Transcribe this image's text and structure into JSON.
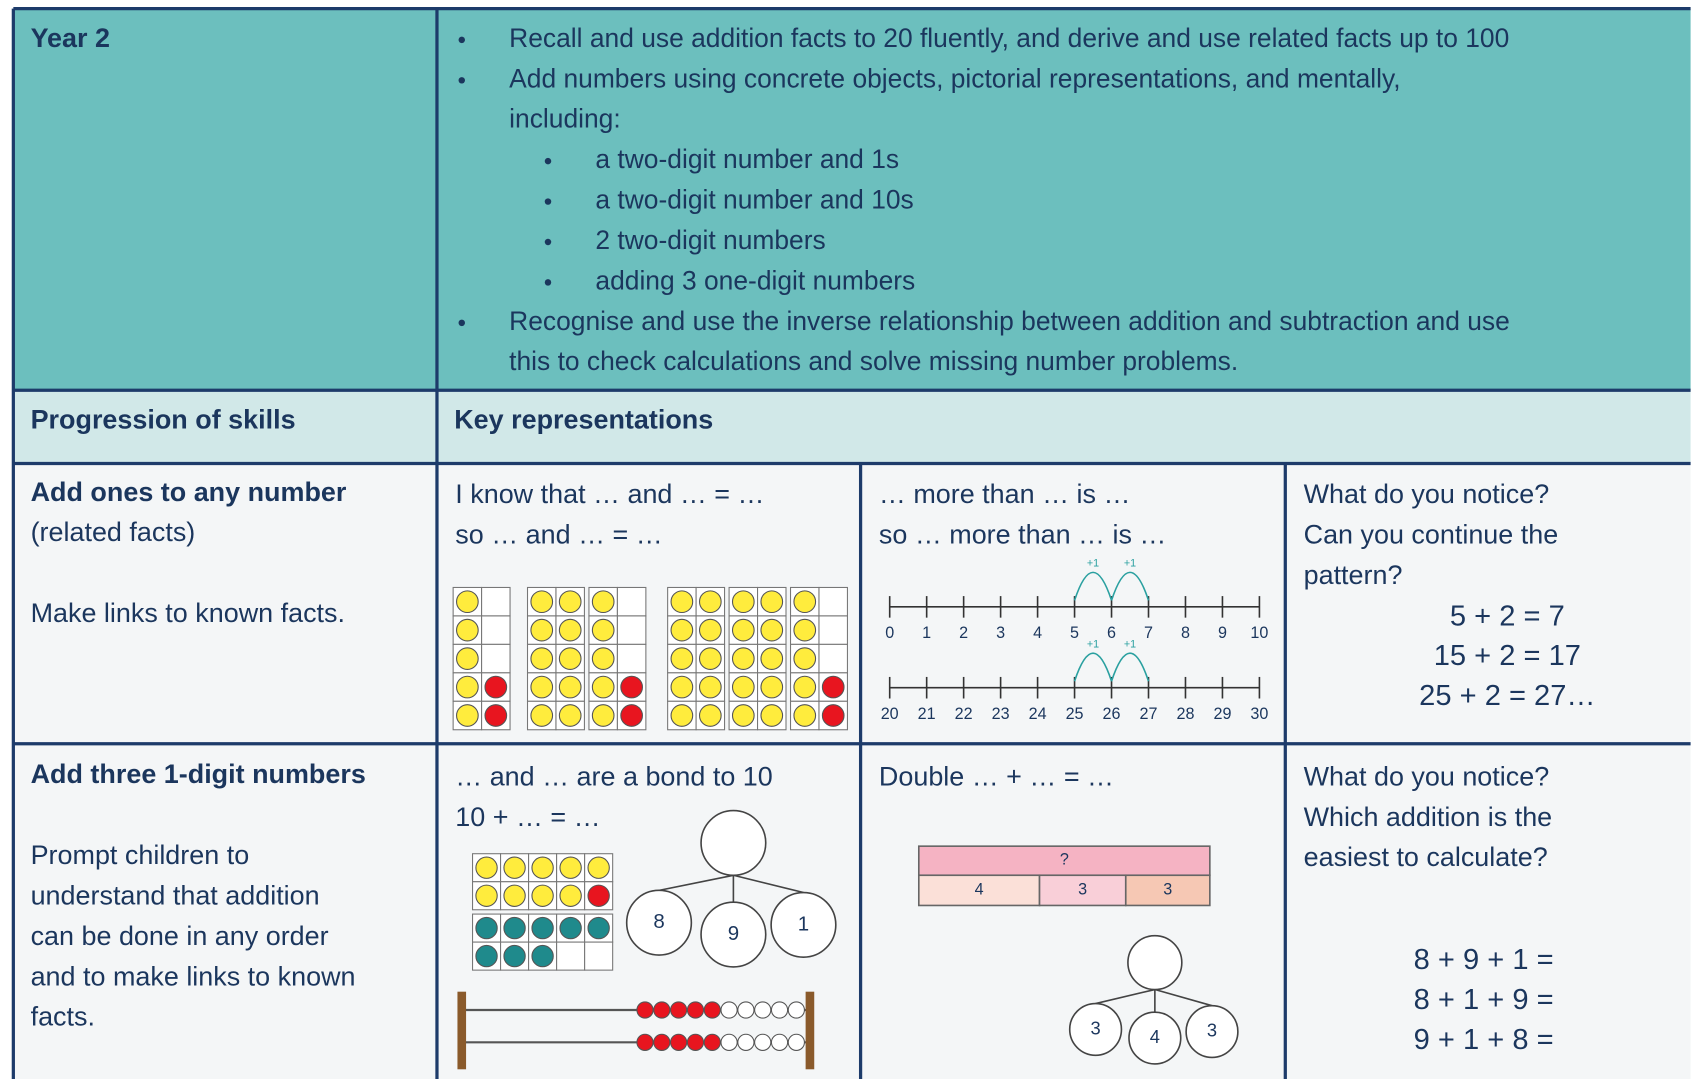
{
  "year": "Year 2",
  "objectives": [
    {
      "lines": [
        "Recall and use addition facts to 20 fluently, and derive and use related facts up to 100"
      ]
    },
    {
      "lines": [
        "Add numbers using concrete objects, pictorial representations, and mentally,",
        "including:"
      ],
      "sub": [
        "a two-digit number and 1s",
        "a two-digit number and 10s",
        "2 two-digit numbers",
        "adding 3 one-digit numbers"
      ]
    },
    {
      "lines": [
        "Recognise and use the inverse relationship between addition and subtraction and use",
        "this to check calculations and solve missing number problems."
      ]
    }
  ],
  "headers": [
    "Progression of skills",
    "Key representations"
  ],
  "rows": [
    {
      "skill_title": "Add ones to any number",
      "skill_lines": [
        "(related facts)",
        "",
        "Make links to known facts."
      ],
      "cells": [
        {
          "lines": [
            "I know that … and … = …",
            "so … and … = …"
          ]
        },
        {
          "lines": [
            "… more than … is …",
            "so … more than … is …"
          ],
          "number_lines": [
            {
              "ticks": [
                0,
                1,
                2,
                3,
                4,
                5,
                6,
                7,
                8,
                9,
                10
              ],
              "jumps": [
                "+1",
                "+1"
              ]
            },
            {
              "ticks": [
                20,
                21,
                22,
                23,
                24,
                25,
                26,
                27,
                28,
                29,
                30
              ],
              "jumps": [
                "+1",
                "+1"
              ]
            }
          ]
        },
        {
          "lines": [
            "What do you notice?",
            "Can you continue the",
            "pattern?"
          ],
          "equations": [
            "5 + 2 = 7",
            "15 + 2 = 17",
            "25 + 2 = 27…"
          ]
        }
      ]
    },
    {
      "skill_title": "Add three 1-digit numbers",
      "skill_lines": [
        "",
        "Prompt children to",
        "understand that addition",
        "can be done in any order",
        "and to make links to known",
        "facts."
      ],
      "cells": [
        {
          "lines": [
            "… and … are a bond to 10",
            "10 + … = …"
          ],
          "part_whole": [
            "8",
            "9",
            "1"
          ]
        },
        {
          "lines": [
            "Double … + … = …"
          ],
          "bar_model": {
            "whole": "?",
            "parts": [
              "4",
              "3",
              "3"
            ]
          },
          "part_whole": [
            "3",
            "4",
            "3"
          ]
        },
        {
          "lines": [
            "What do you notice?",
            "Which addition is the",
            "easiest to calculate?"
          ],
          "equations": [
            "8 + 9 + 1 =",
            "8 + 1 + 9 =",
            "9 + 1 + 8 ="
          ]
        }
      ]
    }
  ]
}
